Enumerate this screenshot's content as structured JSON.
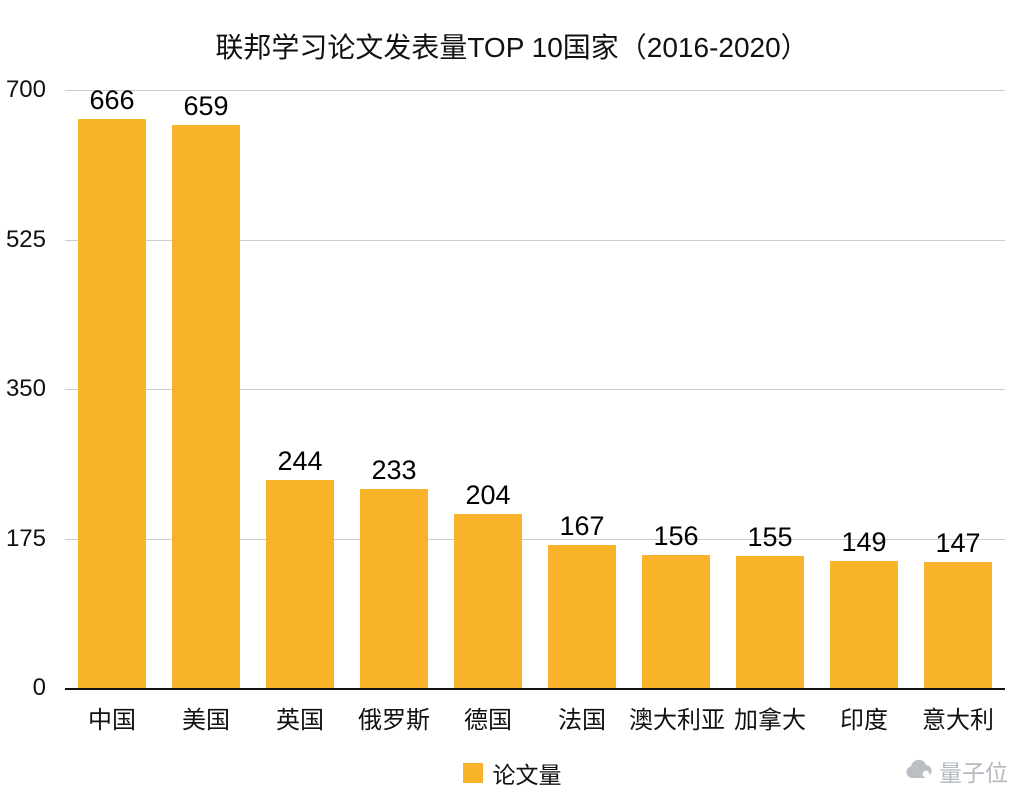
{
  "chart_data": {
    "type": "bar",
    "title": "联邦学习论文发表量TOP 10国家（2016-2020）",
    "categories": [
      "中国",
      "美国",
      "英国",
      "俄罗斯",
      "德国",
      "法国",
      "澳大利亚",
      "加拿大",
      "印度",
      "意大利"
    ],
    "values": [
      666,
      659,
      244,
      233,
      204,
      167,
      156,
      155,
      149,
      147
    ],
    "ylim": [
      0,
      700
    ],
    "yticks": [
      0,
      175,
      350,
      525,
      700
    ],
    "grid": true,
    "legend_position": "bottom",
    "legend": [
      {
        "label": "论文量",
        "color": "#F9B32B"
      }
    ],
    "colors": {
      "bar": "#F9B32B",
      "gridline": "#cccccc",
      "axis": "#111111"
    }
  },
  "watermark": {
    "label": "量子位"
  }
}
